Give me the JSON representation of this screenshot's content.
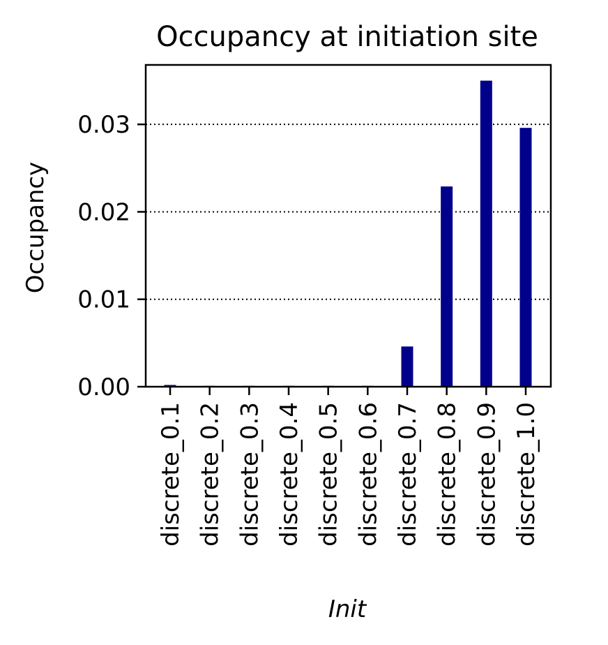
{
  "chart_data": {
    "type": "bar",
    "title": "Occupancy at initiation site",
    "xlabel": "Init",
    "ylabel": "Occupancy",
    "categories": [
      "discrete_0.1",
      "discrete_0.2",
      "discrete_0.3",
      "discrete_0.4",
      "discrete_0.5",
      "discrete_0.6",
      "discrete_0.7",
      "discrete_0.8",
      "discrete_0.9",
      "discrete_1.0"
    ],
    "values": [
      0.0002,
      0.0001,
      0.0001,
      0.0001,
      0.0001,
      0.0001,
      0.0046,
      0.0229,
      0.035,
      0.0296
    ],
    "ylim": [
      0,
      0.0368
    ],
    "yticks": [
      0,
      0.01,
      0.02,
      0.03
    ],
    "ytick_labels": [
      "0.00",
      "0.01",
      "0.02",
      "0.03"
    ],
    "grid": "y dotted",
    "bar_color": "#00008b"
  }
}
